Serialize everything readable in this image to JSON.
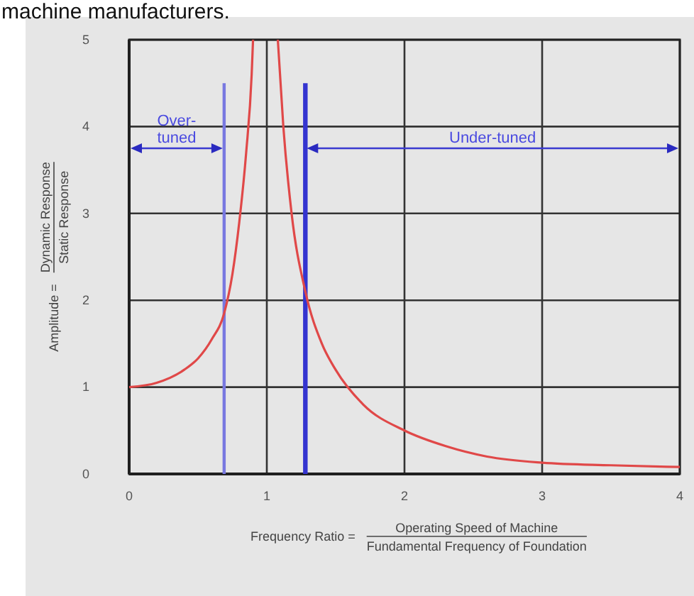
{
  "chart_data": {
    "type": "line",
    "xlabel": "Frequency Ratio = Operating Speed of Machine\nFundamental Frequency of Foundation",
    "ylabel": "Amplitude = Dynamic Response\nStatic Response",
    "xlim": [
      0,
      4
    ],
    "xticks": [
      0,
      1,
      2,
      3,
      4
    ],
    "ylim": [
      0,
      5
    ],
    "yticks": [
      0,
      1,
      2,
      3,
      4,
      5
    ],
    "grid": true,
    "series": [
      {
        "color": "#e04848",
        "x": [
          0,
          0.2,
          0.4,
          0.5,
          0.6,
          0.69,
          0.75,
          0.8,
          0.85,
          0.89,
          0.9,
          1.0,
          1.08,
          1.12,
          1.18,
          1.28,
          1.4,
          1.5,
          1.7,
          2.0,
          2.3,
          2.6,
          3.0,
          3.5,
          4.0
        ],
        "values": [
          1.0,
          1.05,
          1.2,
          1.33,
          1.55,
          1.85,
          2.3,
          2.9,
          3.7,
          4.6,
          5,
          null,
          5,
          4.0,
          3.0,
          2.1,
          1.5,
          1.2,
          0.8,
          0.5,
          0.32,
          0.2,
          0.13,
          0.1,
          0.08
        ]
      }
    ],
    "ref_lines": [
      {
        "axis": "x",
        "value": 0.69,
        "color": "#7878e0"
      },
      {
        "axis": "x",
        "value": 1.28,
        "color": "#3434d0"
      }
    ],
    "annotations": [
      "machine manufacturers.",
      "Over-\ntuned",
      "Under-tuned"
    ]
  }
}
